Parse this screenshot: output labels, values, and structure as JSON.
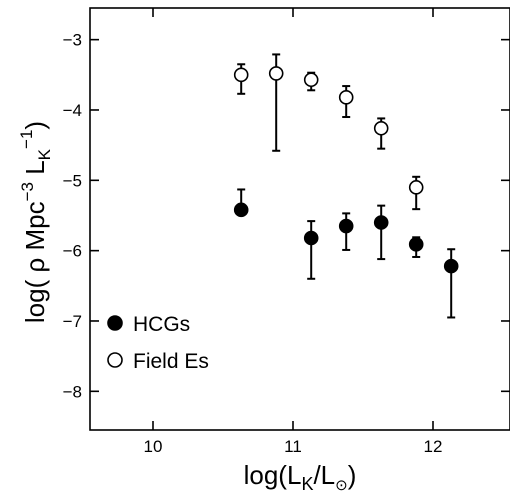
{
  "chart_data": {
    "type": "scatter",
    "title": "",
    "xlabel": {
      "prefix": "log(L",
      "sub1": "K",
      "mid": "/L",
      "sub2": "⊙",
      "suffix": ")"
    },
    "ylabel": {
      "prefix": "log( ρ Mpc",
      "sup1": "−3",
      "mid": " L",
      "sub": "K",
      "sup2": "−1",
      "suffix": ")"
    },
    "xlim": [
      9.55,
      12.55
    ],
    "ylim": [
      -8.55,
      -2.55
    ],
    "xticks": [
      10,
      11,
      12
    ],
    "xtick_labels": [
      "10",
      "11",
      "12"
    ],
    "yticks": [
      -3,
      -4,
      -5,
      -6,
      -7,
      -8
    ],
    "ytick_labels": [
      "−3",
      "−4",
      "−5",
      "−6",
      "−7",
      "−8"
    ],
    "grid": false,
    "legend_position": "bottom-left",
    "series": [
      {
        "name": "HCGs",
        "marker": "filled-circle",
        "color": "#000000",
        "points": [
          {
            "x": 10.63,
            "y": -5.42,
            "y_lo": -5.42,
            "y_hi": -5.13
          },
          {
            "x": 11.13,
            "y": -5.82,
            "y_lo": -6.4,
            "y_hi": -5.58
          },
          {
            "x": 11.38,
            "y": -5.65,
            "y_lo": -5.99,
            "y_hi": -5.47
          },
          {
            "x": 11.63,
            "y": -5.6,
            "y_lo": -6.12,
            "y_hi": -5.36
          },
          {
            "x": 11.88,
            "y": -5.91,
            "y_lo": -6.09,
            "y_hi": -5.81
          },
          {
            "x": 12.13,
            "y": -6.22,
            "y_lo": -6.95,
            "y_hi": -5.98
          }
        ]
      },
      {
        "name": "Field Es",
        "marker": "open-circle",
        "color": "#000000",
        "points": [
          {
            "x": 10.63,
            "y": -3.5,
            "y_lo": -3.77,
            "y_hi": -3.35
          },
          {
            "x": 10.88,
            "y": -3.48,
            "y_lo": -4.58,
            "y_hi": -3.21
          },
          {
            "x": 11.13,
            "y": -3.57,
            "y_lo": -3.72,
            "y_hi": -3.47
          },
          {
            "x": 11.38,
            "y": -3.82,
            "y_lo": -4.1,
            "y_hi": -3.66
          },
          {
            "x": 11.63,
            "y": -4.26,
            "y_lo": -4.55,
            "y_hi": -4.12
          },
          {
            "x": 11.88,
            "y": -5.1,
            "y_lo": -5.41,
            "y_hi": -4.95
          }
        ]
      }
    ]
  }
}
